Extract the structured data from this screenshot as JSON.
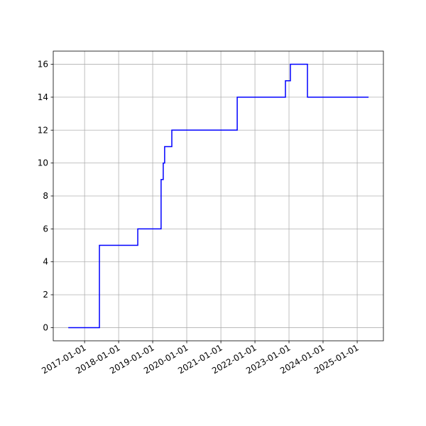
{
  "chart_data": {
    "type": "line",
    "drawstyle": "steps-post",
    "x": [
      "2016-07-10",
      "2017-06-09",
      "2018-07-25",
      "2019-04-01",
      "2019-04-24",
      "2019-05-09",
      "2019-07-25",
      "2021-06-25",
      "2022-11-24",
      "2023-01-16",
      "2023-07-18",
      "2025-05-03"
    ],
    "series": [
      {
        "color": "#0000ff",
        "values": [
          0,
          5,
          6,
          9,
          10,
          11,
          12,
          14,
          15,
          16,
          14,
          14
        ]
      }
    ],
    "xlim": [
      "2016-01-31",
      "2025-10-09"
    ],
    "xticks": [
      "2017-01-01",
      "2018-01-01",
      "2019-01-01",
      "2020-01-01",
      "2021-01-01",
      "2022-01-01",
      "2023-01-01",
      "2024-01-01",
      "2025-01-01"
    ],
    "ylim": [
      -0.8,
      16.8
    ],
    "yticks": [
      0,
      2,
      4,
      6,
      8,
      10,
      12,
      14,
      16
    ],
    "grid": true
  }
}
